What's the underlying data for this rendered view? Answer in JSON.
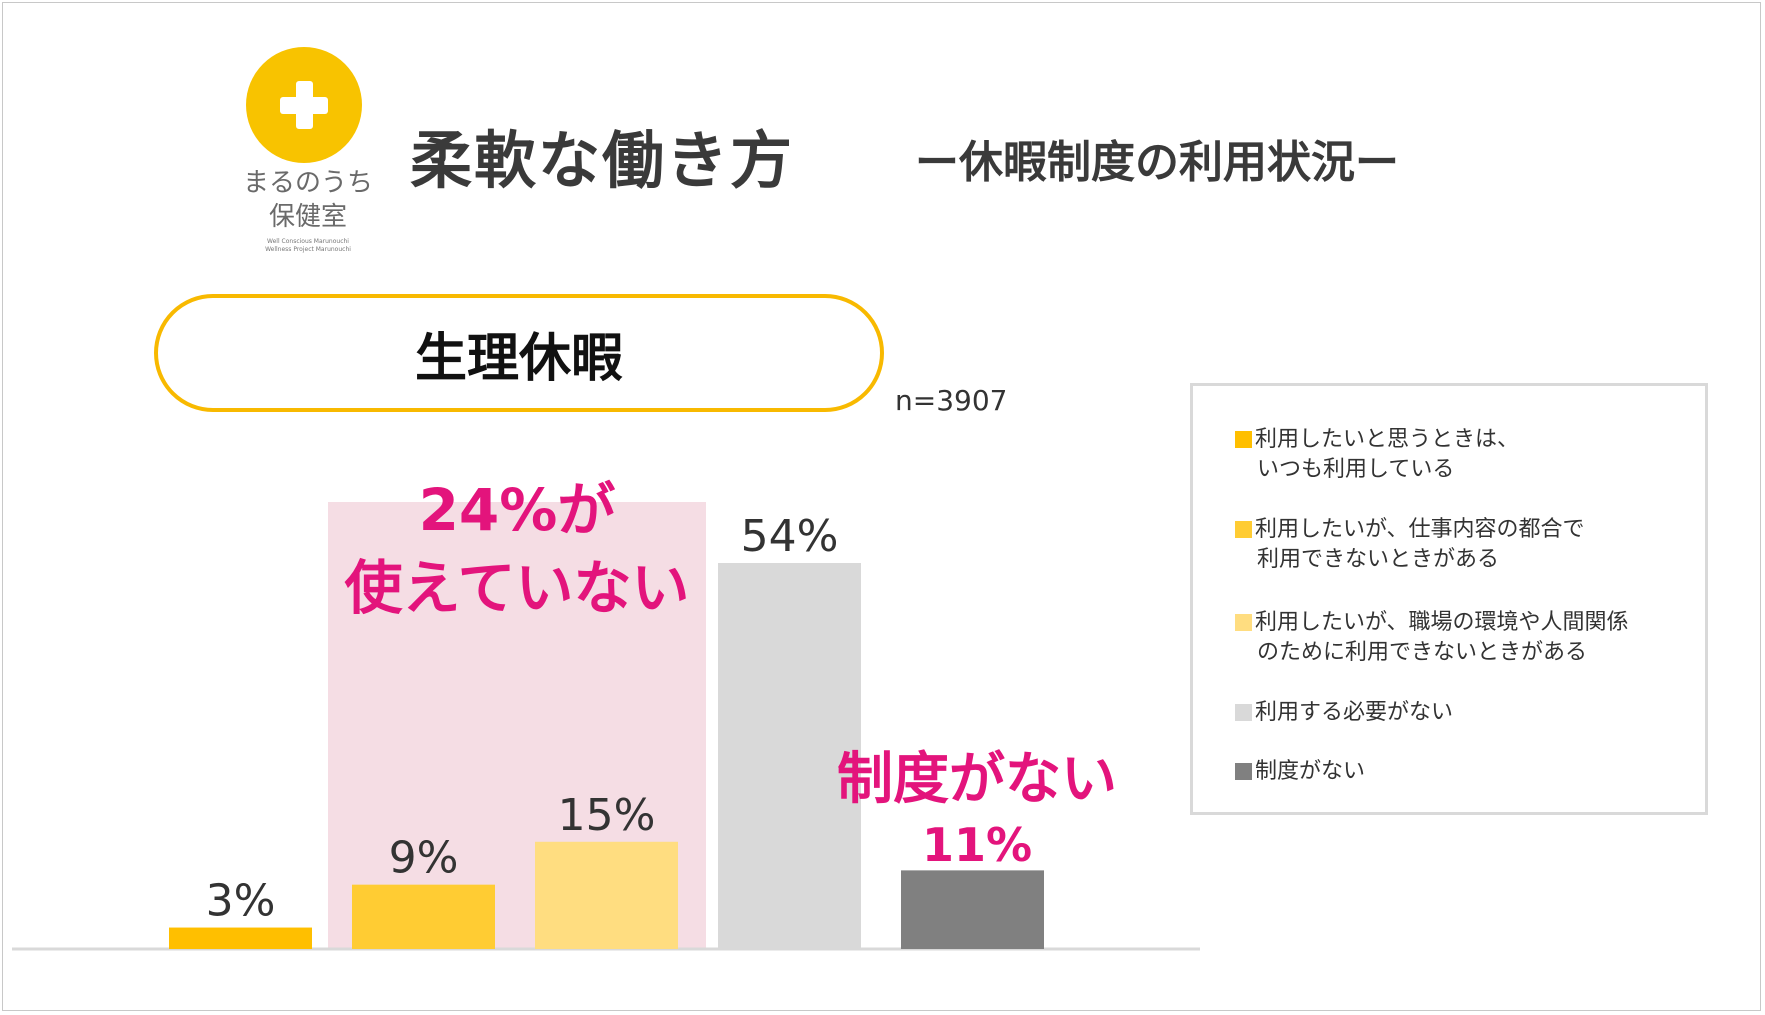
{
  "logo": {
    "line1": "まるのうち",
    "line2": "保健室",
    "sub1": "Well Conscious Marunouchi",
    "sub2": "Wellness Project Marunouchi",
    "color": "#f8c300"
  },
  "header": {
    "title": "柔軟な働き方",
    "subtitle": "ー休暇制度の利用状況ー"
  },
  "section_label": "生理休暇",
  "sample_size": "n=3907",
  "callouts": {
    "cant_use_line1": "24%が",
    "cant_use_line2": "使えていない",
    "no_system_line1": "制度がない",
    "no_system_line2": "11%"
  },
  "chart_data": {
    "type": "bar",
    "title": "生理休暇",
    "categories": [
      "利用したいと思うときは、いつも利用している",
      "利用したいが、仕事内容の都合で利用できないときがある",
      "利用したいが、職場の環境や人間関係のために利用できないときがある",
      "利用する必要がない",
      "制度がない"
    ],
    "values": [
      3,
      9,
      15,
      54,
      11
    ],
    "value_labels": [
      "3%",
      "9%",
      "15%",
      "54%",
      ""
    ],
    "colors": [
      "#ffbf00",
      "#ffcc33",
      "#ffdd80",
      "#d9d9d9",
      "#808080"
    ],
    "unit": "%",
    "ylim": [
      0,
      54
    ],
    "legend_position": "right",
    "grid": false
  },
  "legend": {
    "items": [
      {
        "lines": [
          "利用したいと思うときは、",
          "いつも利用している"
        ],
        "color": "#ffbf00"
      },
      {
        "lines": [
          "利用したいが、仕事内容の都合で",
          "利用できないときがある"
        ],
        "color": "#ffcc33"
      },
      {
        "lines": [
          "利用したいが、職場の環境や人間関係",
          "のために利用できないときがある"
        ],
        "color": "#ffdd80"
      },
      {
        "lines": [
          "利用する必要がない"
        ],
        "color": "#d9d9d9"
      },
      {
        "lines": [
          "制度がない"
        ],
        "color": "#808080"
      }
    ]
  }
}
